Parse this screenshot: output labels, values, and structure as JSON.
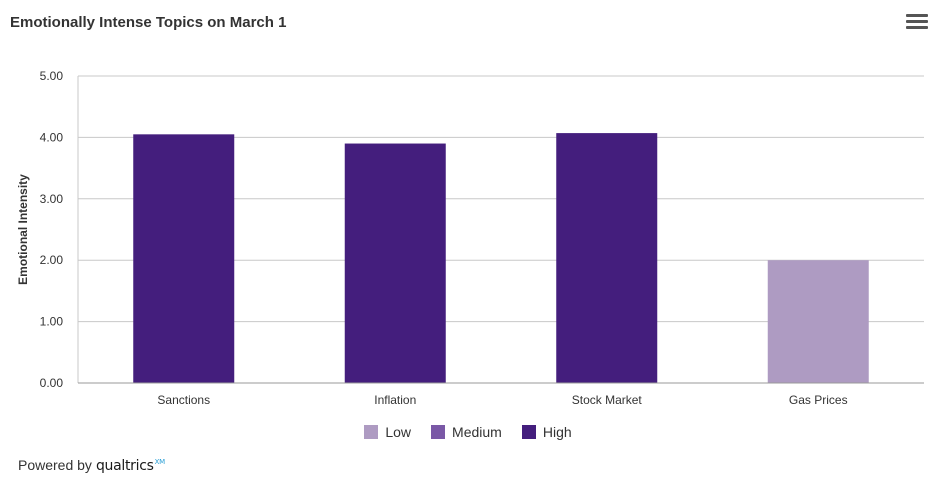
{
  "header": {
    "title": "Emotionally Intense Topics on March 1",
    "menu_icon": "hamburger-menu-icon"
  },
  "chart_data": {
    "type": "bar",
    "title": "Emotionally Intense Topics on March 1",
    "xlabel": "",
    "ylabel": "Emotional Intensity",
    "ylim": [
      0,
      5
    ],
    "yticks": [
      "0.00",
      "1.00",
      "2.00",
      "3.00",
      "4.00",
      "5.00"
    ],
    "categories": [
      "Sanctions",
      "Inflation",
      "Stock Market",
      "Gas Prices"
    ],
    "values": [
      4.05,
      3.9,
      4.07,
      2.0
    ],
    "bar_levels": [
      "High",
      "High",
      "High",
      "Low"
    ],
    "grid": true,
    "legend_position": "bottom"
  },
  "legend": {
    "items": [
      {
        "label": "Low",
        "color": "#ae9bc2"
      },
      {
        "label": "Medium",
        "color": "#7a58a6"
      },
      {
        "label": "High",
        "color": "#441e7d"
      }
    ]
  },
  "footer": {
    "powered_by": "Powered by",
    "brand": "qualtrics",
    "brand_mark": "XM"
  }
}
